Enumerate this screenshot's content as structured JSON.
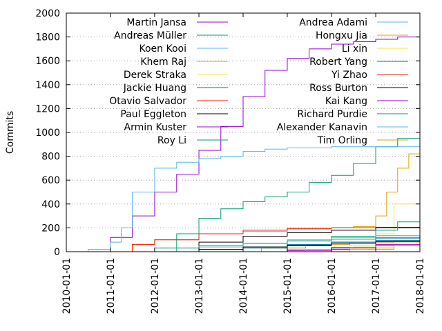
{
  "chart_data": {
    "type": "line",
    "ylabel": "Commits",
    "xlabel": "",
    "ylim": [
      0,
      2000
    ],
    "yticks": [
      0,
      200,
      400,
      600,
      800,
      1000,
      1200,
      1400,
      1600,
      1800,
      2000
    ],
    "xlim": [
      "2010-01-01",
      "2018-01-01"
    ],
    "xticks": [
      "2010-01-01",
      "2011-01-01",
      "2012-01-01",
      "2013-01-01",
      "2014-01-01",
      "2015-01-01",
      "2016-01-01",
      "2017-01-01",
      "2018-01-01"
    ],
    "grid": "horizontal dotted",
    "legend": "top, two columns",
    "series": [
      {
        "name": "Martin Jansa",
        "color": "#9400d3",
        "points": [
          [
            "2010-10-15",
            0
          ],
          [
            "2011-01-01",
            120
          ],
          [
            "2011-07-01",
            300
          ],
          [
            "2012-01-01",
            500
          ],
          [
            "2012-07-01",
            650
          ],
          [
            "2013-01-01",
            850
          ],
          [
            "2013-07-01",
            1050
          ],
          [
            "2014-01-01",
            1300
          ],
          [
            "2014-07-01",
            1520
          ],
          [
            "2015-01-01",
            1620
          ],
          [
            "2015-07-01",
            1700
          ],
          [
            "2016-01-01",
            1740
          ],
          [
            "2016-07-01",
            1760
          ],
          [
            "2017-01-01",
            1780
          ],
          [
            "2017-07-01",
            1800
          ],
          [
            "2018-01-01",
            1810
          ]
        ]
      },
      {
        "name": "Andreas Müller",
        "color": "#009e73",
        "points": [
          [
            "2012-03-01",
            0
          ],
          [
            "2012-07-01",
            150
          ],
          [
            "2013-01-01",
            280
          ],
          [
            "2013-07-01",
            360
          ],
          [
            "2014-01-01",
            420
          ],
          [
            "2014-07-01",
            460
          ],
          [
            "2015-01-01",
            500
          ],
          [
            "2015-07-01",
            580
          ],
          [
            "2016-01-01",
            640
          ],
          [
            "2016-07-01",
            740
          ],
          [
            "2017-01-01",
            880
          ],
          [
            "2017-07-01",
            950
          ],
          [
            "2018-01-01",
            1000
          ]
        ]
      },
      {
        "name": "Koen Kooi",
        "color": "#56b4e9",
        "points": [
          [
            "2010-04-01",
            0
          ],
          [
            "2010-07-01",
            20
          ],
          [
            "2011-01-01",
            80
          ],
          [
            "2011-04-01",
            200
          ],
          [
            "2011-07-01",
            500
          ],
          [
            "2012-01-01",
            700
          ],
          [
            "2012-07-01",
            750
          ],
          [
            "2013-01-01",
            780
          ],
          [
            "2013-07-01",
            800
          ],
          [
            "2014-01-01",
            840
          ],
          [
            "2014-07-01",
            860
          ],
          [
            "2015-01-01",
            870
          ],
          [
            "2016-01-01",
            880
          ],
          [
            "2017-01-01",
            880
          ],
          [
            "2018-01-01",
            880
          ]
        ]
      },
      {
        "name": "Khem Raj",
        "color": "#e69f00",
        "points": [
          [
            "2011-01-01",
            0
          ],
          [
            "2011-07-01",
            60
          ],
          [
            "2012-01-01",
            100
          ],
          [
            "2013-01-01",
            150
          ],
          [
            "2014-01-01",
            170
          ],
          [
            "2015-01-01",
            190
          ],
          [
            "2016-01-01",
            200
          ],
          [
            "2016-07-01",
            210
          ],
          [
            "2017-01-01",
            300
          ],
          [
            "2017-04-01",
            500
          ],
          [
            "2017-07-01",
            700
          ],
          [
            "2017-10-01",
            820
          ],
          [
            "2018-01-01",
            830
          ]
        ]
      },
      {
        "name": "Derek Straka",
        "color": "#f0e442",
        "points": [
          [
            "2015-06-01",
            0
          ],
          [
            "2016-01-01",
            20
          ],
          [
            "2016-07-01",
            40
          ],
          [
            "2017-01-01",
            150
          ],
          [
            "2017-06-01",
            400
          ],
          [
            "2018-01-01",
            680
          ]
        ]
      },
      {
        "name": "Jackie Huang",
        "color": "#0072b2",
        "points": [
          [
            "2014-01-01",
            0
          ],
          [
            "2015-01-01",
            50
          ],
          [
            "2016-01-01",
            80
          ],
          [
            "2017-01-01",
            110
          ],
          [
            "2018-01-01",
            130
          ]
        ]
      },
      {
        "name": "Otavio Salvador",
        "color": "#e51e10",
        "points": [
          [
            "2011-03-01",
            0
          ],
          [
            "2011-07-01",
            60
          ],
          [
            "2012-01-01",
            100
          ],
          [
            "2013-01-01",
            150
          ],
          [
            "2014-01-01",
            180
          ],
          [
            "2015-01-01",
            195
          ],
          [
            "2016-01-01",
            200
          ],
          [
            "2017-01-01",
            205
          ],
          [
            "2018-01-01",
            210
          ]
        ]
      },
      {
        "name": "Paul Eggleton",
        "color": "#000000",
        "points": [
          [
            "2012-04-01",
            0
          ],
          [
            "2013-01-01",
            80
          ],
          [
            "2014-01-01",
            130
          ],
          [
            "2015-01-01",
            160
          ],
          [
            "2016-01-01",
            180
          ],
          [
            "2017-01-01",
            200
          ],
          [
            "2018-01-01",
            210
          ]
        ]
      },
      {
        "name": "Armin Kuster",
        "color": "#9400d3",
        "points": [
          [
            "2014-06-01",
            0
          ],
          [
            "2015-01-01",
            10
          ],
          [
            "2016-01-01",
            30
          ],
          [
            "2017-01-01",
            80
          ],
          [
            "2018-01-01",
            110
          ]
        ]
      },
      {
        "name": "Roy Li",
        "color": "#009e73",
        "points": [
          [
            "2013-01-01",
            0
          ],
          [
            "2014-01-01",
            40
          ],
          [
            "2015-01-01",
            90
          ],
          [
            "2016-01-01",
            130
          ],
          [
            "2017-01-01",
            180
          ],
          [
            "2017-07-01",
            250
          ],
          [
            "2018-01-01",
            270
          ]
        ]
      },
      {
        "name": "Andrea Adami",
        "color": "#56b4e9",
        "points": [
          [
            "2012-01-01",
            0
          ],
          [
            "2013-01-01",
            40
          ],
          [
            "2014-01-01",
            70
          ],
          [
            "2015-01-01",
            100
          ],
          [
            "2016-01-01",
            120
          ],
          [
            "2017-01-01",
            135
          ],
          [
            "2018-01-01",
            140
          ]
        ]
      },
      {
        "name": "Hongxu Jia",
        "color": "#e69f00",
        "points": [
          [
            "2013-06-01",
            0
          ],
          [
            "2014-06-01",
            30
          ],
          [
            "2015-06-01",
            60
          ],
          [
            "2016-06-01",
            80
          ],
          [
            "2017-06-01",
            95
          ],
          [
            "2018-01-01",
            105
          ]
        ]
      },
      {
        "name": "Li xin",
        "color": "#f0e442",
        "points": [
          [
            "2014-06-01",
            0
          ],
          [
            "2015-06-01",
            20
          ],
          [
            "2016-06-01",
            50
          ],
          [
            "2017-06-01",
            80
          ],
          [
            "2018-01-01",
            95
          ]
        ]
      },
      {
        "name": "Robert Yang",
        "color": "#0072b2",
        "points": [
          [
            "2013-01-01",
            0
          ],
          [
            "2014-01-01",
            30
          ],
          [
            "2015-01-01",
            60
          ],
          [
            "2016-01-01",
            80
          ],
          [
            "2017-01-01",
            95
          ],
          [
            "2018-01-01",
            105
          ]
        ]
      },
      {
        "name": "Yi Zhao",
        "color": "#e51e10",
        "points": [
          [
            "2015-01-01",
            0
          ],
          [
            "2016-01-01",
            20
          ],
          [
            "2017-01-01",
            50
          ],
          [
            "2018-01-01",
            85
          ]
        ]
      },
      {
        "name": "Ross Burton",
        "color": "#000000",
        "points": [
          [
            "2012-01-01",
            0
          ],
          [
            "2013-01-01",
            20
          ],
          [
            "2014-01-01",
            40
          ],
          [
            "2015-01-01",
            55
          ],
          [
            "2016-01-01",
            70
          ],
          [
            "2017-01-01",
            85
          ],
          [
            "2018-01-01",
            95
          ]
        ]
      },
      {
        "name": "Kai Kang",
        "color": "#9400d3",
        "points": [
          [
            "2014-01-01",
            0
          ],
          [
            "2015-01-01",
            15
          ],
          [
            "2016-01-01",
            35
          ],
          [
            "2017-01-01",
            60
          ],
          [
            "2018-01-01",
            80
          ]
        ]
      },
      {
        "name": "Richard Purdie",
        "color": "#009e73",
        "points": [
          [
            "2011-01-01",
            0
          ],
          [
            "2012-01-01",
            30
          ],
          [
            "2013-01-01",
            50
          ],
          [
            "2014-01-01",
            70
          ],
          [
            "2015-01-01",
            90
          ],
          [
            "2016-01-01",
            105
          ],
          [
            "2017-01-01",
            120
          ],
          [
            "2018-01-01",
            135
          ]
        ]
      },
      {
        "name": "Alexander Kanavin",
        "color": "#56b4e9",
        "points": [
          [
            "2015-06-01",
            0
          ],
          [
            "2016-06-01",
            20
          ],
          [
            "2017-06-01",
            50
          ],
          [
            "2018-01-01",
            70
          ]
        ]
      },
      {
        "name": "Tim Orling",
        "color": "#e69f00",
        "points": [
          [
            "2014-06-01",
            0
          ],
          [
            "2015-06-01",
            15
          ],
          [
            "2016-06-01",
            30
          ],
          [
            "2017-06-01",
            50
          ],
          [
            "2018-01-01",
            60
          ]
        ]
      }
    ]
  }
}
